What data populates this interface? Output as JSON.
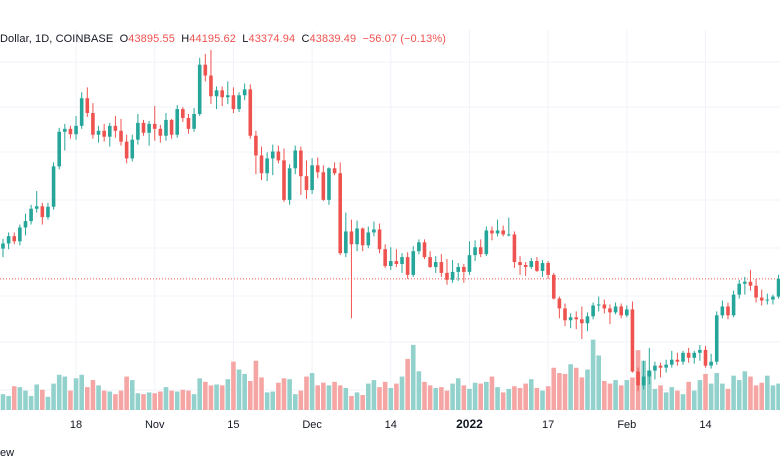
{
  "header": {
    "symbol_fragment": "Dollar, 1D, COINBASE",
    "open_label": "O",
    "open_value": "43895.55",
    "high_label": "H",
    "high_value": "44195.62",
    "low_label": "L",
    "low_value": "43374.94",
    "close_label": "C",
    "close_value": "43839.49",
    "change_value": "−56.07 (−0.13%)"
  },
  "footer": {
    "fragment": "ew"
  },
  "colors": {
    "up": "#26a69a",
    "down": "#ef5350",
    "up_volume": "#93d2cc",
    "down_volume": "#f5a6a4",
    "grid": "#f0f3fa"
  },
  "chart_data": {
    "type": "candlestick",
    "symbol": "Dollar, 1D, COINBASE",
    "interval": "1D",
    "x_tick_labels": [
      "18",
      "Nov",
      "15",
      "Dec",
      "14",
      "2022",
      "17",
      "Feb",
      "14"
    ],
    "x_tick_index": [
      13,
      27,
      41,
      55,
      69,
      83,
      97,
      111,
      125
    ],
    "y_range_estimated": [
      32000,
      70000
    ],
    "volume_range_relative": [
      0,
      1
    ],
    "candles": [
      [
        48860,
        49850,
        48000,
        49380
      ],
      [
        49380,
        50500,
        48800,
        50120
      ],
      [
        50120,
        50500,
        49300,
        49600
      ],
      [
        49600,
        51300,
        49200,
        51000
      ],
      [
        51000,
        52400,
        50200,
        51650
      ],
      [
        51650,
        53300,
        51300,
        52900
      ],
      [
        52900,
        54700,
        52500,
        53150
      ],
      [
        53150,
        53500,
        51300,
        52050
      ],
      [
        52050,
        53500,
        51800,
        53100
      ],
      [
        53100,
        57600,
        52800,
        57200
      ],
      [
        57200,
        61100,
        56900,
        60700
      ],
      [
        60700,
        61500,
        58800,
        61000
      ],
      [
        61000,
        61300,
        60000,
        60450
      ],
      [
        60450,
        62300,
        59900,
        61300
      ],
      [
        61300,
        64700,
        61000,
        64100
      ],
      [
        64100,
        65200,
        62200,
        62600
      ],
      [
        62600,
        63600,
        60000,
        60400
      ],
      [
        60400,
        61300,
        59600,
        60800
      ],
      [
        60800,
        61500,
        59700,
        60200
      ],
      [
        60200,
        61600,
        59200,
        61300
      ],
      [
        61300,
        62300,
        60100,
        60800
      ],
      [
        60800,
        62000,
        59300,
        59700
      ],
      [
        59700,
        60400,
        57500,
        58000
      ],
      [
        58000,
        60400,
        57700,
        59900
      ],
      [
        59900,
        62500,
        59400,
        61600
      ],
      [
        61600,
        61900,
        60300,
        60600
      ],
      [
        60600,
        61800,
        59300,
        61500
      ],
      [
        61500,
        63300,
        59800,
        61000
      ],
      [
        61000,
        61400,
        59600,
        60300
      ],
      [
        60300,
        62600,
        59800,
        61900
      ],
      [
        61900,
        62000,
        60000,
        60400
      ],
      [
        60400,
        63400,
        60100,
        63000
      ],
      [
        63000,
        63200,
        61700,
        62100
      ],
      [
        62100,
        62500,
        60500,
        61000
      ],
      [
        61000,
        63100,
        60700,
        62500
      ],
      [
        62500,
        68200,
        62300,
        67500
      ],
      [
        67500,
        68600,
        65800,
        66400
      ],
      [
        66400,
        69000,
        63500,
        64300
      ],
      [
        64300,
        65300,
        63000,
        64900
      ],
      [
        64900,
        65300,
        63300,
        64200
      ],
      [
        64200,
        65800,
        63500,
        64400
      ],
      [
        64400,
        65200,
        62600,
        63000
      ],
      [
        63000,
        64700,
        62700,
        64400
      ],
      [
        64400,
        65600,
        63900,
        65000
      ],
      [
        65000,
        65500,
        60000,
        60300
      ],
      [
        60300,
        60800,
        56400,
        58300
      ],
      [
        58300,
        59200,
        55800,
        56500
      ],
      [
        56500,
        58600,
        55700,
        58000
      ],
      [
        58000,
        59400,
        56300,
        58700
      ],
      [
        58700,
        59300,
        57500,
        57800
      ],
      [
        57800,
        59000,
        53600,
        53800
      ],
      [
        53800,
        57400,
        53300,
        57000
      ],
      [
        57000,
        59300,
        56400,
        58800
      ],
      [
        58800,
        59200,
        54300,
        56200
      ],
      [
        56200,
        57800,
        53900,
        54800
      ],
      [
        54800,
        58000,
        54400,
        57300
      ],
      [
        57300,
        58100,
        56000,
        56600
      ],
      [
        56600,
        57300,
        53700,
        53800
      ],
      [
        53800,
        57100,
        53300,
        57000
      ],
      [
        57000,
        57600,
        56300,
        56500
      ],
      [
        56500,
        57600,
        48200,
        48400
      ],
      [
        48400,
        52500,
        48000,
        50600
      ],
      [
        50600,
        51800,
        41800,
        49300
      ],
      [
        49300,
        51700,
        48600,
        50900
      ],
      [
        50900,
        51000,
        48600,
        49200
      ],
      [
        49200,
        51100,
        48900,
        50500
      ],
      [
        50500,
        51600,
        50100,
        50800
      ],
      [
        50800,
        51400,
        48400,
        48800
      ],
      [
        48800,
        49300,
        46900,
        47100
      ],
      [
        47100,
        49000,
        46700,
        47600
      ],
      [
        47600,
        48800,
        47000,
        47300
      ],
      [
        47300,
        48400,
        46400,
        48000
      ],
      [
        48000,
        48500,
        45800,
        46200
      ],
      [
        46200,
        49100,
        46000,
        48600
      ],
      [
        48600,
        49800,
        48300,
        49500
      ],
      [
        49500,
        49800,
        47800,
        48000
      ],
      [
        48000,
        48600,
        46900,
        47000
      ],
      [
        47000,
        48100,
        46400,
        47500
      ],
      [
        47500,
        48300,
        46000,
        46400
      ],
      [
        46400,
        47800,
        45200,
        45700
      ],
      [
        45700,
        47700,
        45400,
        46500
      ],
      [
        46500,
        47400,
        45600,
        47000
      ],
      [
        47000,
        47300,
        45400,
        46500
      ],
      [
        46500,
        49600,
        46200,
        48200
      ],
      [
        48200,
        49700,
        47600,
        49000
      ],
      [
        49000,
        49800,
        48000,
        48300
      ],
      [
        48300,
        51100,
        48100,
        50700
      ],
      [
        50700,
        51100,
        49700,
        50400
      ],
      [
        50400,
        51800,
        50100,
        50700
      ],
      [
        50700,
        51200,
        50100,
        50300
      ],
      [
        50300,
        52000,
        50100,
        50300
      ],
      [
        50300,
        50600,
        46900,
        47500
      ],
      [
        47500,
        48100,
        46200,
        47200
      ],
      [
        47200,
        47500,
        46100,
        47000
      ],
      [
        47000,
        47900,
        46800,
        47600
      ],
      [
        47600,
        48000,
        46500,
        46600
      ],
      [
        46600,
        47700,
        46000,
        47400
      ],
      [
        47400,
        47600,
        45800,
        46200
      ],
      [
        46200,
        46400,
        43700,
        43800
      ],
      [
        43800,
        44000,
        41800,
        42800
      ],
      [
        42800,
        43300,
        41000,
        41600
      ],
      [
        41600,
        42300,
        40800,
        41900
      ],
      [
        41900,
        42500,
        40700,
        41700
      ],
      [
        41700,
        43000,
        39700,
        41300
      ],
      [
        41300,
        42400,
        40500,
        42000
      ],
      [
        42000,
        43400,
        41700,
        43100
      ],
      [
        43100,
        44000,
        42500,
        43200
      ],
      [
        43200,
        43700,
        42300,
        42800
      ],
      [
        42800,
        43200,
        41200,
        42400
      ],
      [
        42400,
        43400,
        42200,
        43000
      ],
      [
        43000,
        43300,
        41800,
        42100
      ],
      [
        42100,
        43100,
        41900,
        42700
      ],
      [
        42700,
        43500,
        36300,
        36400
      ],
      [
        36400,
        36800,
        34400,
        35000
      ],
      [
        35000,
        37500,
        34600,
        35900
      ],
      [
        35900,
        38800,
        35100,
        36500
      ],
      [
        36500,
        37400,
        35600,
        37000
      ],
      [
        37000,
        37300,
        35800,
        36800
      ],
      [
        36800,
        37600,
        36300,
        37100
      ],
      [
        37100,
        38500,
        36800,
        37600
      ],
      [
        37600,
        38300,
        37000,
        37400
      ],
      [
        37400,
        38500,
        37100,
        38300
      ],
      [
        38300,
        38800,
        37300,
        37800
      ],
      [
        37800,
        38500,
        37200,
        38300
      ],
      [
        38300,
        39100,
        37500,
        38600
      ],
      [
        38600,
        39000,
        36800,
        37000
      ],
      [
        37000,
        38200,
        36700,
        37400
      ],
      [
        37400,
        42500,
        37100,
        42100
      ],
      [
        42100,
        43600,
        41800,
        43000
      ],
      [
        43000,
        43400,
        41700,
        42100
      ],
      [
        42100,
        44600,
        41900,
        44200
      ],
      [
        44200,
        45700,
        43800,
        45300
      ],
      [
        45300,
        46000,
        44200,
        45500
      ],
      [
        45500,
        46700,
        44600,
        45100
      ],
      [
        45100,
        45800,
        43400,
        43900
      ],
      [
        43900,
        44700,
        43100,
        43600
      ],
      [
        43600,
        44300,
        43200,
        43700
      ],
      [
        43700,
        44200,
        43200,
        44000
      ],
      [
        44000,
        46200,
        43800,
        45800
      ]
    ],
    "volume": [
      0.18,
      0.16,
      0.27,
      0.26,
      0.22,
      0.16,
      0.29,
      0.23,
      0.15,
      0.3,
      0.4,
      0.38,
      0.22,
      0.36,
      0.4,
      0.26,
      0.34,
      0.28,
      0.22,
      0.21,
      0.18,
      0.22,
      0.38,
      0.34,
      0.19,
      0.18,
      0.2,
      0.19,
      0.21,
      0.26,
      0.22,
      0.21,
      0.23,
      0.22,
      0.18,
      0.36,
      0.32,
      0.28,
      0.29,
      0.28,
      0.35,
      0.55,
      0.46,
      0.41,
      0.33,
      0.56,
      0.37,
      0.2,
      0.21,
      0.31,
      0.36,
      0.35,
      0.18,
      0.22,
      0.38,
      0.42,
      0.28,
      0.31,
      0.28,
      0.32,
      0.28,
      0.25,
      0.16,
      0.2,
      0.17,
      0.3,
      0.34,
      0.26,
      0.32,
      0.25,
      0.3,
      0.38,
      0.58,
      0.74,
      0.44,
      0.32,
      0.28,
      0.25,
      0.26,
      0.22,
      0.3,
      0.36,
      0.28,
      0.24,
      0.31,
      0.3,
      0.32,
      0.38,
      0.26,
      0.2,
      0.24,
      0.27,
      0.25,
      0.3,
      0.35,
      0.25,
      0.22,
      0.27,
      0.48,
      0.42,
      0.41,
      0.52,
      0.48,
      0.37,
      0.46,
      0.8,
      0.62,
      0.33,
      0.3,
      0.34,
      0.28,
      0.34,
      0.37,
      0.68,
      0.56,
      0.45,
      0.24,
      0.28,
      0.2,
      0.26,
      0.22,
      0.18,
      0.32,
      0.22,
      0.34,
      0.41,
      0.3,
      0.42,
      0.3,
      0.24,
      0.39,
      0.34,
      0.44,
      0.38,
      0.28,
      0.31,
      0.39,
      0.28,
      0.3,
      0.22
    ]
  }
}
